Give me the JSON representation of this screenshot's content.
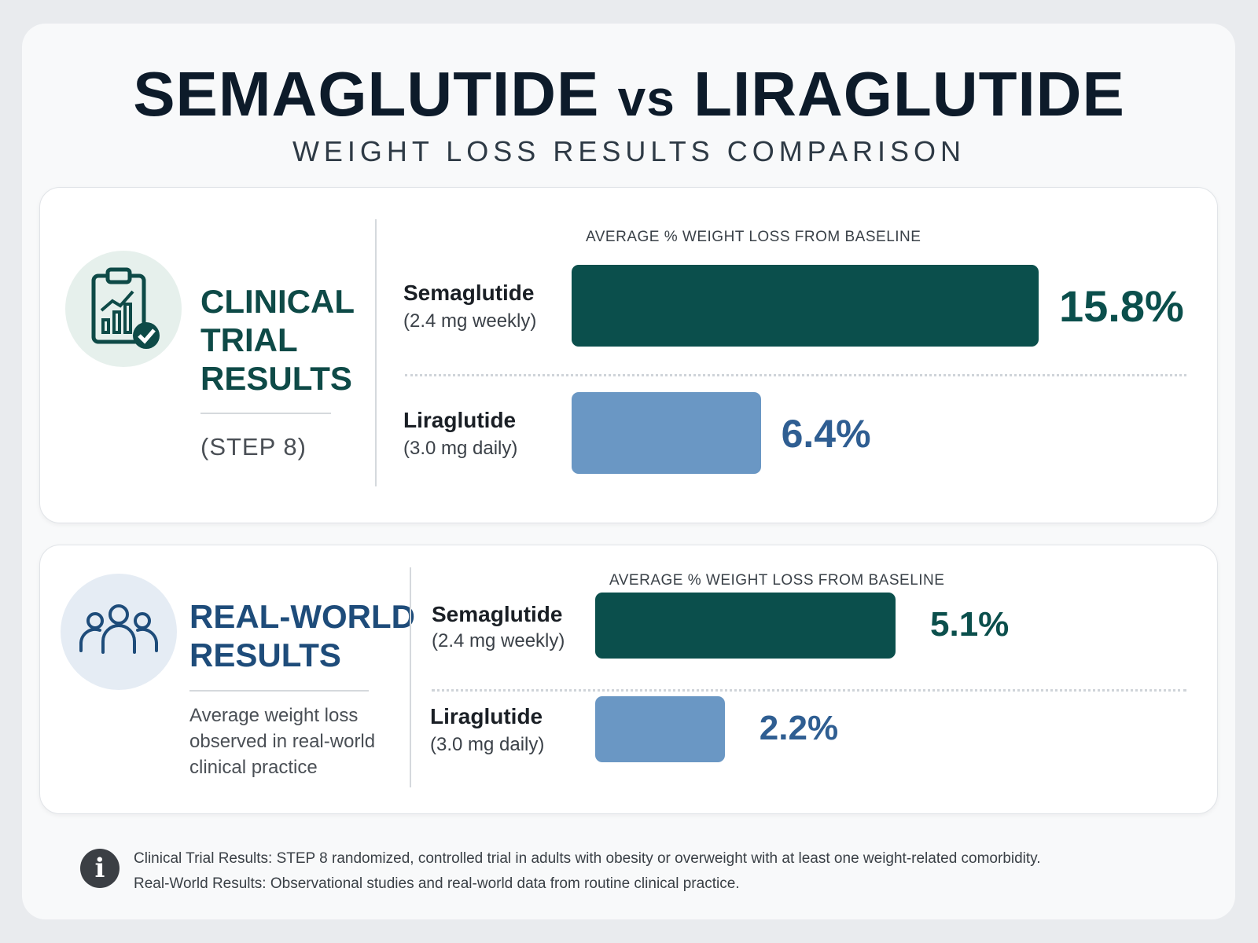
{
  "header": {
    "title_left": "SEMAGLUTIDE",
    "title_vs": "vs",
    "title_right": "LIRAGLUTIDE",
    "subtitle": "WEIGHT LOSS RESULTS COMPARISON"
  },
  "icons": {
    "clinical": "clipboard-chart-check-icon",
    "realworld": "people-group-icon",
    "info": "info-icon"
  },
  "colors": {
    "semaglutide": "#0b4f4c",
    "liraglutide": "#6a97c4",
    "clinical_title": "#0e4a47",
    "realworld_title": "#1e4c7a"
  },
  "sections": [
    {
      "title_lines": [
        "CLINICAL",
        "TRIAL",
        "RESULTS"
      ],
      "note": "(STEP 8)"
    },
    {
      "title_lines": [
        "REAL-WORLD",
        "RESULTS"
      ],
      "note": "Average weight loss observed in real-world clinical practice"
    }
  ],
  "chart_data": [
    {
      "type": "bar",
      "orientation": "horizontal",
      "title": "AVERAGE % WEIGHT LOSS FROM BASELINE",
      "categories": [
        "Semaglutide",
        "Liraglutide"
      ],
      "category_sublabels": [
        "(2.4 mg weekly)",
        "(3.0 mg daily)"
      ],
      "values": [
        15.8,
        6.4
      ],
      "value_labels": [
        "15.8%",
        "6.4%"
      ],
      "unit": "%",
      "xlim": [
        0,
        15.8
      ],
      "grid": false,
      "legend": "none"
    },
    {
      "type": "bar",
      "orientation": "horizontal",
      "title": "AVERAGE % WEIGHT LOSS FROM BASELINE",
      "categories": [
        "Semaglutide",
        "Liraglutide"
      ],
      "category_sublabels": [
        "(2.4 mg weekly)",
        "(3.0 mg daily)"
      ],
      "values": [
        5.1,
        2.2
      ],
      "value_labels": [
        "5.1%",
        "2.2%"
      ],
      "unit": "%",
      "xlim": [
        0,
        5.1
      ],
      "grid": false,
      "legend": "none"
    }
  ],
  "footnotes": [
    "Clinical Trial Results: STEP 8 randomized, controlled trial in adults with obesity or overweight with at least one weight-related comorbidity.",
    "Real-World Results: Observational studies and real-world data from routine clinical practice."
  ]
}
